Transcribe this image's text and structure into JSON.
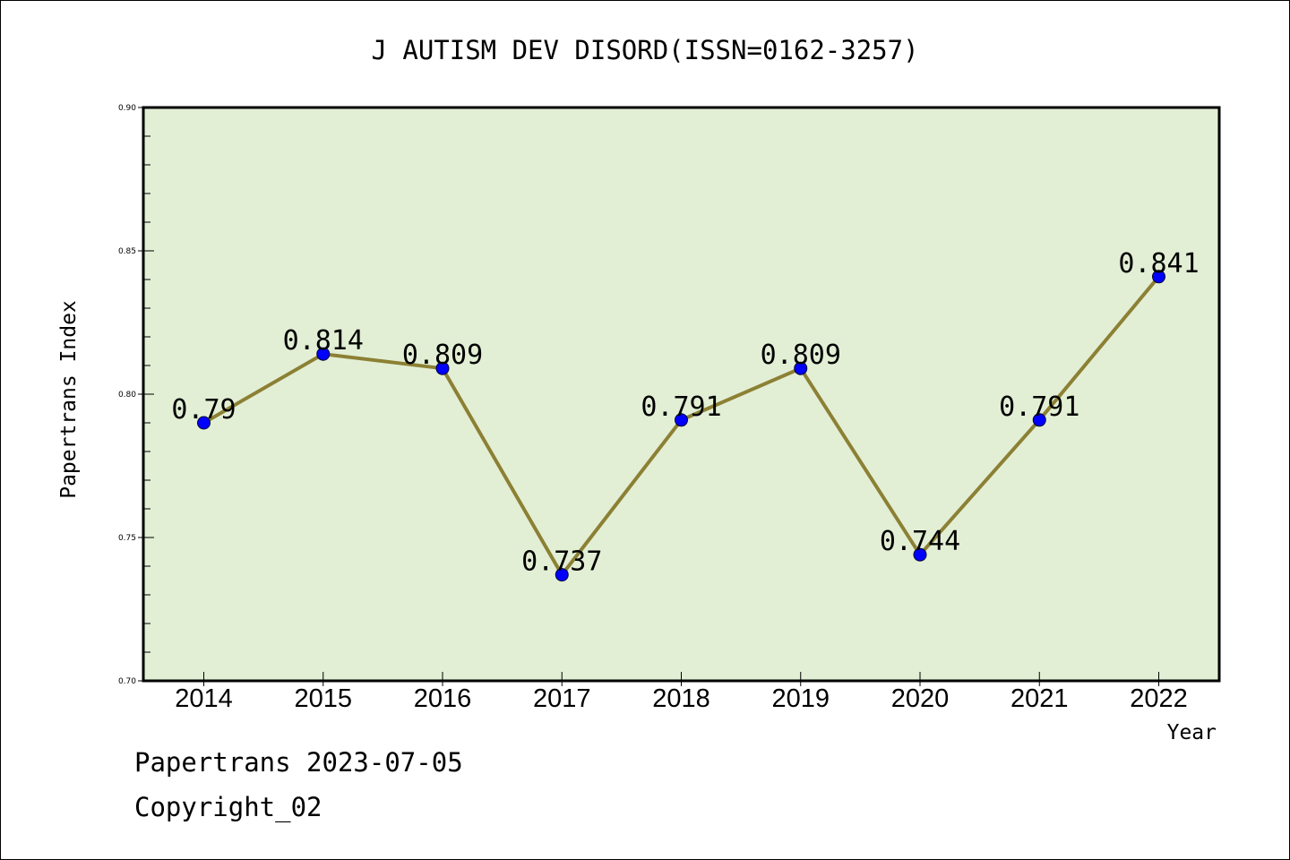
{
  "chart_data": {
    "type": "line",
    "title": "J AUTISM DEV DISORD(ISSN=0162-3257)",
    "xlabel": "Year",
    "ylabel": "Papertrans Index",
    "categories": [
      "2014",
      "2015",
      "2016",
      "2017",
      "2018",
      "2019",
      "2020",
      "2021",
      "2022"
    ],
    "series": [
      {
        "values": [
          0.79,
          0.814,
          0.809,
          0.737,
          0.791,
          0.809,
          0.744,
          0.791,
          0.841
        ]
      }
    ],
    "data_labels": [
      "0.79",
      "0.814",
      "0.809",
      "0.737",
      "0.791",
      "0.809",
      "0.744",
      "0.791",
      "0.841"
    ],
    "ylim": [
      0.7,
      0.9
    ],
    "yticks": [
      "0.70",
      "0.75",
      "0.80",
      "0.85",
      "0.90"
    ],
    "grid": false,
    "colors": {
      "plot_background": "#e2efd5",
      "line": "#8c8034",
      "marker": "#0000ff"
    }
  },
  "footer": {
    "line1": "Papertrans 2023-07-05",
    "line2": "Copyright_02"
  }
}
